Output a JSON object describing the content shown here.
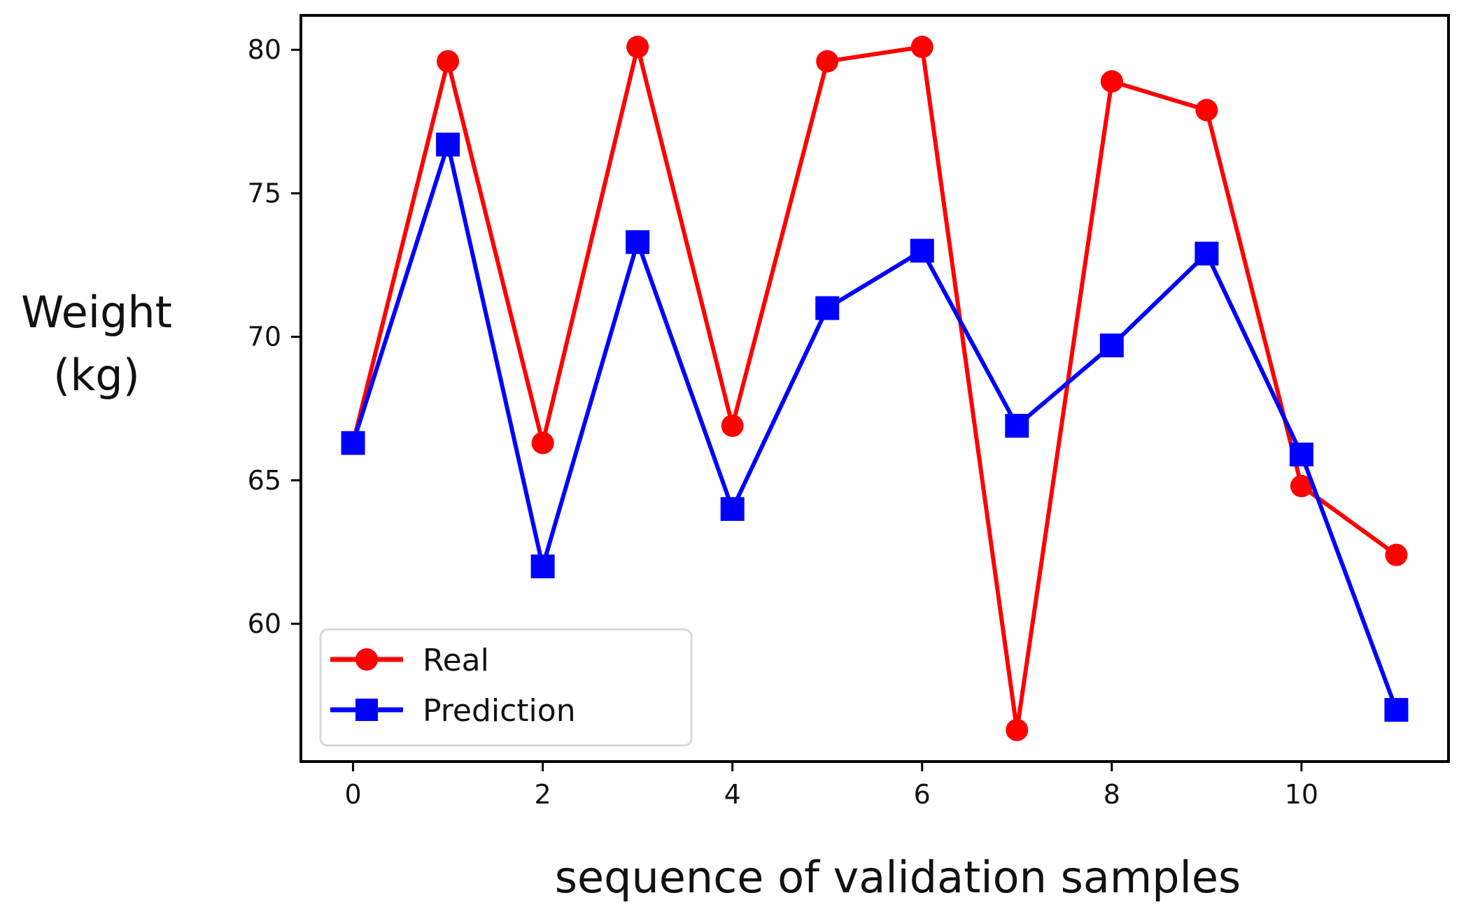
{
  "chart_data": {
    "type": "line",
    "title": "",
    "xlabel": "sequence of validation samples",
    "ylabel_lines": [
      "Weight",
      "(kg)"
    ],
    "x": [
      0,
      1,
      2,
      3,
      4,
      5,
      6,
      7,
      8,
      9,
      10,
      11
    ],
    "xticks": [
      0,
      2,
      4,
      6,
      8,
      10
    ],
    "yticks": [
      60,
      65,
      70,
      75,
      80
    ],
    "xlim": [
      -0.55,
      11.55
    ],
    "ylim": [
      55.2,
      81.2
    ],
    "grid": false,
    "legend_position": "bottom-left",
    "series": [
      {
        "name": "Real",
        "marker": "circle",
        "color": "#ff0000",
        "values": [
          66.3,
          79.6,
          66.3,
          80.1,
          66.9,
          79.6,
          80.1,
          56.3,
          78.9,
          77.9,
          64.8,
          62.4
        ]
      },
      {
        "name": "Prediction",
        "marker": "square",
        "color": "#0000ff",
        "values": [
          66.3,
          76.7,
          62.0,
          73.3,
          64.0,
          71.0,
          73.0,
          66.9,
          69.7,
          72.9,
          65.9,
          57.0
        ]
      }
    ]
  }
}
